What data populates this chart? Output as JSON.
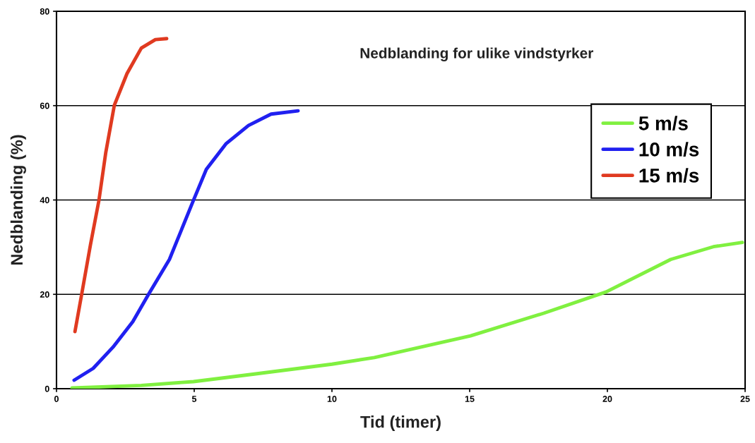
{
  "chart_data": {
    "type": "line",
    "title": "Nedblanding for ulike vindstyrker",
    "xlabel": "Tid (timer)",
    "ylabel": "Nedblanding (%)",
    "xlim": [
      0,
      25
    ],
    "xticks": [
      0,
      5,
      10,
      15,
      20,
      25
    ],
    "ylim": [
      0,
      80
    ],
    "yticks": [
      0,
      20,
      40,
      60,
      80
    ],
    "grid": "y",
    "legend": "top right",
    "marker": "none",
    "line_style": "solid",
    "series": [
      {
        "name": "5 m/s",
        "color": "#80f040",
        "x": [
          0.56,
          3.08,
          4.97,
          7.18,
          10,
          11.54,
          15.03,
          17.69,
          19.95,
          22.3,
          23.85,
          24.9
        ],
        "values": [
          0.15,
          0.7,
          1.5,
          3.1,
          5.2,
          6.6,
          11.2,
          16.0,
          20.5,
          27.4,
          30.1,
          31.0
        ]
      },
      {
        "name": "10 m/s",
        "color": "#2020f0",
        "x": [
          0.64,
          1.33,
          2.05,
          2.77,
          3.33,
          4.1,
          4.97,
          5.44,
          6.15,
          6.97,
          7.79,
          8.77
        ],
        "values": [
          1.8,
          4.3,
          8.8,
          14.2,
          19.9,
          27.4,
          39.9,
          46.5,
          51.9,
          55.8,
          58.2,
          58.9
        ]
      },
      {
        "name": "15 m/s",
        "color": "#e03a20",
        "x": [
          0.67,
          0.92,
          1.23,
          1.54,
          1.79,
          2.1,
          2.56,
          3.08,
          3.59,
          4.0
        ],
        "values": [
          12.1,
          20.2,
          30.4,
          39.9,
          50.1,
          60.1,
          66.8,
          72.2,
          74.0,
          74.2
        ]
      }
    ]
  }
}
